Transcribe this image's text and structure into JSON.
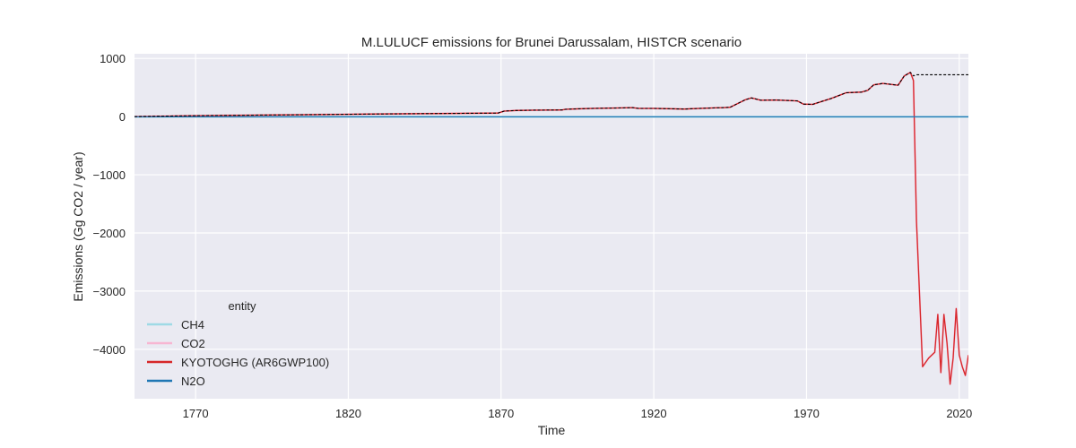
{
  "chart_data": {
    "type": "line",
    "title": "M.LULUCF emissions for Brunei Darussalam, HISTCR scenario",
    "xlabel": "Time",
    "ylabel": "Emissions (Gg CO2 / year)",
    "xlim": [
      1750,
      2023
    ],
    "ylim": [
      -4850,
      1080
    ],
    "xticks": [
      1770,
      1820,
      1870,
      1920,
      1970,
      2020
    ],
    "yticks": [
      1000,
      0,
      -1000,
      -2000,
      -3000,
      -4000
    ],
    "ytick_labels": [
      "1000",
      "0",
      "−1000",
      "−2000",
      "−3000",
      "−4000"
    ],
    "grid": true,
    "legend": {
      "title": "entity",
      "placement": "lower-left"
    },
    "series": [
      {
        "name": "CH4",
        "color": "#9edae5",
        "style": "solid",
        "x": [
          1750,
          2023
        ],
        "y": [
          -5,
          -5
        ]
      },
      {
        "name": "CO2",
        "color": "#f7b6d2",
        "style": "solid",
        "x": [
          1750,
          1770,
          1800,
          1830,
          1869,
          1871,
          1875,
          1880,
          1890,
          1891,
          1893,
          1900,
          1910,
          1913,
          1915,
          1920,
          1930,
          1935,
          1940,
          1943,
          1945,
          1950,
          1952,
          1955,
          1960,
          1967,
          1969,
          1972,
          1975,
          1978,
          1980,
          1983,
          1988,
          1990,
          1992,
          1995,
          2000,
          2002,
          2004,
          2005,
          2006,
          2008,
          2010,
          2012,
          2013,
          2014,
          2015,
          2016,
          2017,
          2018,
          2019,
          2020,
          2021,
          2022,
          2023
        ],
        "y": [
          0,
          15,
          30,
          45,
          60,
          95,
          105,
          110,
          115,
          125,
          130,
          140,
          150,
          155,
          140,
          140,
          130,
          140,
          150,
          155,
          160,
          290,
          320,
          280,
          285,
          270,
          215,
          210,
          260,
          310,
          350,
          410,
          420,
          450,
          545,
          570,
          540,
          700,
          760,
          620,
          -1800,
          -4300,
          -4150,
          -4050,
          -3400,
          -4400,
          -3400,
          -3900,
          -4600,
          -4150,
          -3300,
          -4100,
          -4300,
          -4450,
          -4100
        ]
      },
      {
        "name": "KYOTOGHG (AR6GWP100)",
        "color": "#d62728",
        "style": "solid",
        "x": [
          1750,
          1770,
          1800,
          1830,
          1869,
          1871,
          1875,
          1880,
          1890,
          1891,
          1893,
          1900,
          1910,
          1913,
          1915,
          1920,
          1930,
          1935,
          1940,
          1943,
          1945,
          1950,
          1952,
          1955,
          1960,
          1967,
          1969,
          1972,
          1975,
          1978,
          1980,
          1983,
          1988,
          1990,
          1992,
          1995,
          2000,
          2002,
          2004,
          2005,
          2006,
          2008,
          2010,
          2012,
          2013,
          2014,
          2015,
          2016,
          2017,
          2018,
          2019,
          2020,
          2021,
          2022,
          2023
        ],
        "y": [
          0,
          15,
          30,
          45,
          60,
          95,
          105,
          110,
          115,
          125,
          130,
          140,
          150,
          155,
          140,
          140,
          130,
          140,
          150,
          155,
          160,
          290,
          320,
          280,
          285,
          270,
          215,
          210,
          260,
          310,
          350,
          410,
          420,
          450,
          545,
          570,
          540,
          700,
          760,
          620,
          -1800,
          -4300,
          -4150,
          -4050,
          -3400,
          -4400,
          -3400,
          -3900,
          -4600,
          -4150,
          -3300,
          -4100,
          -4300,
          -4450,
          -4100
        ]
      },
      {
        "name": "N2O",
        "color": "#1f77b4",
        "style": "solid",
        "x": [
          1750,
          2023
        ],
        "y": [
          -5,
          -5
        ]
      },
      {
        "name": "",
        "color": "#000000",
        "style": "dashed",
        "x": [
          1750,
          1770,
          1800,
          1830,
          1869,
          1871,
          1875,
          1880,
          1890,
          1891,
          1893,
          1900,
          1910,
          1913,
          1915,
          1920,
          1930,
          1935,
          1940,
          1943,
          1945,
          1950,
          1952,
          1955,
          1960,
          1967,
          1969,
          1972,
          1975,
          1978,
          1980,
          1983,
          1988,
          1990,
          1992,
          1995,
          2000,
          2002,
          2004,
          2005,
          2006,
          2023
        ],
        "y": [
          0,
          15,
          30,
          45,
          60,
          95,
          105,
          110,
          115,
          125,
          130,
          140,
          150,
          155,
          140,
          140,
          130,
          140,
          150,
          155,
          160,
          290,
          320,
          280,
          285,
          270,
          215,
          210,
          260,
          310,
          350,
          410,
          420,
          450,
          545,
          570,
          540,
          700,
          760,
          700,
          720,
          720
        ]
      }
    ]
  }
}
